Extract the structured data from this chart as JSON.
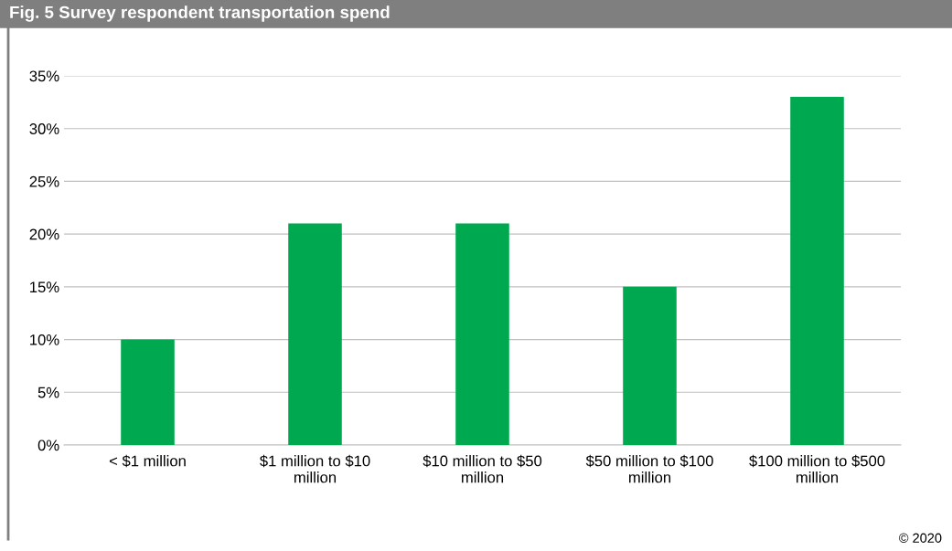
{
  "chart_data": {
    "type": "bar",
    "title": "Fig. 5 Survey respondent transportation spend",
    "categories": [
      "< $1 million",
      "$1 million to $10\nmillion",
      "$10 million to $50\nmillion",
      "$50 million to $100\nmillion",
      "$100 million to $500\nmillion"
    ],
    "values": [
      10,
      21,
      21,
      15,
      33
    ],
    "color": "#00a94f",
    "ylim": [
      0,
      35
    ],
    "yticks": [
      {
        "value": 0,
        "label": "0%"
      },
      {
        "value": 5,
        "label": "5%"
      },
      {
        "value": 10,
        "label": "10%"
      },
      {
        "value": 15,
        "label": "15%"
      },
      {
        "value": 20,
        "label": "20%"
      },
      {
        "value": 25,
        "label": "25%"
      },
      {
        "value": 30,
        "label": "30%"
      },
      {
        "value": 35,
        "label": "35%"
      }
    ],
    "grid": "y",
    "legend": false,
    "annotations": [
      "© 2020"
    ]
  }
}
